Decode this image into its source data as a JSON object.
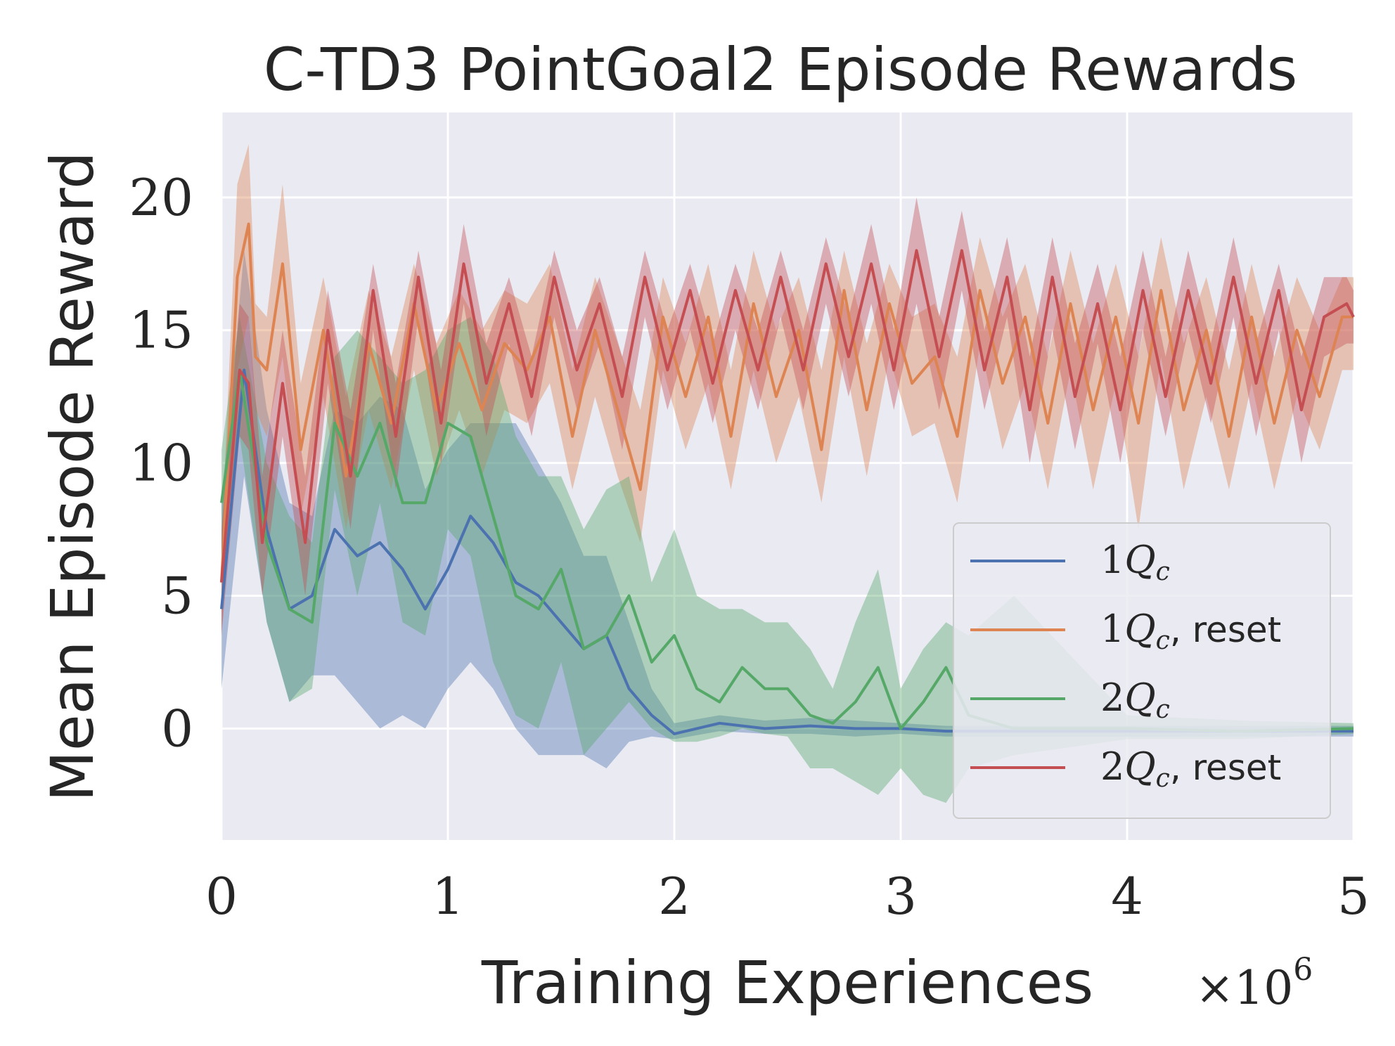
{
  "chart_data": {
    "type": "line",
    "title": "C-TD3 PointGoal2 Episode Rewards",
    "xlabel": "Training Experiences",
    "ylabel": "Mean Episode Reward",
    "x_multiplier": "×10",
    "x_multiplier_exp": "6",
    "xlim": [
      0,
      5
    ],
    "ylim": [
      -4.2,
      23.2
    ],
    "xticks": [
      0,
      1,
      2,
      3,
      4,
      5
    ],
    "xtick_labels": [
      "0",
      "1",
      "2",
      "3",
      "4",
      "5"
    ],
    "yticks": [
      0,
      5,
      10,
      15,
      20
    ],
    "ytick_labels": [
      "0",
      "5",
      "10",
      "15",
      "20"
    ],
    "grid": true,
    "legend_position": "lower-right",
    "series": [
      {
        "name": "1Qc",
        "legend_label": "1Q_c",
        "color": "#4c72b0",
        "x": [
          0,
          0.1,
          0.2,
          0.3,
          0.4,
          0.5,
          0.6,
          0.7,
          0.8,
          0.9,
          1.0,
          1.1,
          1.2,
          1.3,
          1.4,
          1.5,
          1.6,
          1.7,
          1.8,
          1.9,
          2.0,
          2.2,
          2.4,
          2.6,
          2.8,
          3.0,
          3.2,
          3.6,
          4.0,
          4.5,
          5.0
        ],
        "y": [
          4.5,
          13.5,
          7.5,
          4.5,
          5.0,
          7.5,
          6.5,
          7.0,
          6.0,
          4.5,
          6.0,
          8.0,
          7.0,
          5.5,
          5.0,
          4.0,
          3.0,
          3.5,
          1.5,
          0.5,
          -0.2,
          0.2,
          0.0,
          0.1,
          0.0,
          0.0,
          -0.1,
          -0.1,
          -0.1,
          -0.1,
          -0.1
        ],
        "upper": [
          8.5,
          18.0,
          12.0,
          8.5,
          8.0,
          12.0,
          11.5,
          12.5,
          12.0,
          9.0,
          10.5,
          11.5,
          11.5,
          11.5,
          10.0,
          8.5,
          6.5,
          6.5,
          4.0,
          1.5,
          0.2,
          0.5,
          0.3,
          0.4,
          0.3,
          0.2,
          0.1,
          0.1,
          0.1,
          0.1,
          0.1
        ],
        "lower": [
          1.5,
          9.5,
          4.0,
          1.0,
          2.0,
          2.0,
          1.0,
          0.0,
          0.5,
          0.0,
          1.5,
          2.5,
          1.5,
          0.0,
          -1.0,
          -1.0,
          -1.0,
          -1.5,
          -0.5,
          -0.3,
          -0.4,
          -0.1,
          -0.2,
          -0.2,
          -0.3,
          -0.2,
          -0.3,
          -0.3,
          -0.3,
          -0.3,
          -0.3
        ]
      },
      {
        "name": "1Qc, reset",
        "legend_label": "1Q_c, reset",
        "color": "#dd8452",
        "x": [
          0,
          0.07,
          0.12,
          0.15,
          0.2,
          0.27,
          0.35,
          0.45,
          0.55,
          0.65,
          0.75,
          0.85,
          0.95,
          1.05,
          1.15,
          1.25,
          1.35,
          1.45,
          1.55,
          1.65,
          1.75,
          1.85,
          1.95,
          2.05,
          2.15,
          2.25,
          2.35,
          2.45,
          2.55,
          2.65,
          2.75,
          2.85,
          2.95,
          3.05,
          3.15,
          3.25,
          3.35,
          3.45,
          3.55,
          3.65,
          3.75,
          3.85,
          3.95,
          4.05,
          4.15,
          4.25,
          4.35,
          4.45,
          4.55,
          4.65,
          4.75,
          4.85,
          4.95,
          5.0
        ],
        "y": [
          5.5,
          17.0,
          19.0,
          14.0,
          13.5,
          17.5,
          10.5,
          15.0,
          9.5,
          14.5,
          11.5,
          16.0,
          12.0,
          14.5,
          12.0,
          14.5,
          13.5,
          15.5,
          11.0,
          15.0,
          12.0,
          9.0,
          15.5,
          12.5,
          15.5,
          11.0,
          16.0,
          12.5,
          15.0,
          10.5,
          16.5,
          12.0,
          16.0,
          13.0,
          14.0,
          11.0,
          16.5,
          13.0,
          15.5,
          11.5,
          16.0,
          12.0,
          15.5,
          11.5,
          16.5,
          12.0,
          15.0,
          11.0,
          15.5,
          11.5,
          15.0,
          12.5,
          15.5,
          15.5
        ],
        "upper": [
          7.0,
          20.5,
          22.0,
          16.0,
          15.5,
          20.5,
          13.0,
          17.0,
          12.5,
          16.5,
          14.0,
          17.5,
          14.5,
          16.5,
          15.0,
          16.5,
          16.0,
          17.5,
          13.5,
          17.0,
          14.5,
          12.0,
          17.0,
          14.5,
          17.5,
          13.5,
          18.0,
          15.0,
          17.0,
          13.5,
          18.0,
          14.5,
          17.5,
          15.5,
          16.0,
          14.0,
          18.5,
          15.5,
          17.5,
          14.0,
          18.0,
          14.5,
          17.5,
          14.0,
          18.5,
          14.5,
          17.0,
          13.5,
          17.5,
          14.0,
          17.0,
          15.0,
          17.0,
          17.0
        ],
        "lower": [
          3.5,
          13.5,
          15.5,
          12.0,
          11.0,
          14.0,
          8.0,
          12.5,
          7.5,
          12.0,
          9.0,
          13.5,
          9.5,
          12.0,
          9.5,
          12.0,
          11.5,
          13.0,
          9.0,
          12.5,
          9.5,
          7.0,
          13.5,
          10.5,
          13.0,
          9.0,
          13.5,
          10.0,
          12.5,
          8.5,
          14.0,
          9.5,
          14.0,
          11.0,
          11.5,
          8.5,
          14.5,
          10.5,
          13.0,
          9.0,
          13.5,
          9.0,
          13.0,
          7.5,
          14.0,
          9.0,
          12.5,
          9.0,
          13.0,
          9.0,
          12.5,
          10.5,
          13.5,
          13.5
        ]
      },
      {
        "name": "2Qc",
        "legend_label": "2Q_c",
        "color": "#55a868",
        "x": [
          0,
          0.08,
          0.2,
          0.3,
          0.4,
          0.5,
          0.6,
          0.7,
          0.8,
          0.9,
          1.0,
          1.1,
          1.2,
          1.3,
          1.4,
          1.5,
          1.6,
          1.7,
          1.8,
          1.9,
          2.0,
          2.1,
          2.2,
          2.3,
          2.4,
          2.5,
          2.6,
          2.7,
          2.8,
          2.9,
          3.0,
          3.1,
          3.2,
          3.3,
          3.5,
          4.0,
          4.5,
          5.0
        ],
        "y": [
          8.5,
          13.5,
          7.0,
          4.5,
          4.0,
          11.5,
          9.5,
          11.5,
          8.5,
          8.5,
          11.5,
          11.0,
          8.0,
          5.0,
          4.5,
          6.0,
          3.0,
          3.5,
          5.0,
          2.5,
          3.5,
          1.5,
          1.0,
          2.3,
          1.5,
          1.5,
          0.5,
          0.2,
          1.0,
          2.3,
          0.0,
          1.0,
          2.3,
          0.5,
          0.0,
          0.0,
          -0.1,
          0.0
        ],
        "upper": [
          10.5,
          15.5,
          10.0,
          8.0,
          7.0,
          14.0,
          15.0,
          14.0,
          13.0,
          13.5,
          15.0,
          15.5,
          14.0,
          11.0,
          9.5,
          9.5,
          7.5,
          9.0,
          9.5,
          5.5,
          7.5,
          5.0,
          4.5,
          4.5,
          4.0,
          4.0,
          3.0,
          1.5,
          4.0,
          6.0,
          1.5,
          3.0,
          4.0,
          3.5,
          5.0,
          0.5,
          0.3,
          0.2
        ],
        "lower": [
          6.5,
          11.0,
          4.0,
          1.0,
          1.5,
          9.0,
          5.0,
          8.5,
          4.0,
          3.5,
          7.5,
          6.5,
          2.5,
          0.5,
          0.0,
          2.5,
          -1.0,
          0.0,
          1.0,
          0.0,
          -0.5,
          -0.5,
          -0.3,
          0.0,
          -0.2,
          -0.3,
          -1.5,
          -1.5,
          -2.0,
          -2.5,
          -1.5,
          -2.5,
          -2.8,
          -1.5,
          -1.0,
          -0.4,
          -0.4,
          -0.2
        ]
      },
      {
        "name": "2Qc, reset",
        "legend_label": "2Q_c, reset",
        "color": "#c44e52",
        "x": [
          0,
          0.08,
          0.12,
          0.18,
          0.27,
          0.37,
          0.47,
          0.57,
          0.67,
          0.77,
          0.87,
          0.97,
          1.07,
          1.17,
          1.27,
          1.37,
          1.47,
          1.57,
          1.67,
          1.77,
          1.87,
          1.97,
          2.07,
          2.17,
          2.27,
          2.37,
          2.47,
          2.57,
          2.67,
          2.77,
          2.87,
          2.97,
          3.07,
          3.17,
          3.27,
          3.37,
          3.47,
          3.57,
          3.67,
          3.77,
          3.87,
          3.97,
          4.07,
          4.17,
          4.27,
          4.37,
          4.47,
          4.57,
          4.67,
          4.77,
          4.87,
          4.97,
          5.0
        ],
        "y": [
          5.5,
          13.5,
          13.0,
          7.0,
          13.0,
          7.0,
          15.0,
          9.5,
          16.5,
          11.0,
          17.0,
          11.5,
          17.5,
          13.0,
          16.0,
          12.5,
          17.0,
          13.5,
          16.0,
          12.5,
          17.0,
          13.5,
          16.5,
          13.0,
          16.5,
          13.5,
          17.0,
          13.5,
          17.5,
          14.0,
          17.5,
          13.5,
          18.0,
          14.0,
          18.0,
          13.5,
          17.0,
          12.0,
          17.0,
          12.5,
          16.0,
          12.0,
          16.5,
          12.5,
          16.5,
          13.0,
          17.0,
          13.0,
          16.5,
          12.0,
          15.5,
          16.0,
          15.5
        ],
        "upper": [
          7.5,
          16.0,
          15.5,
          9.5,
          15.0,
          9.5,
          16.5,
          12.0,
          17.5,
          13.0,
          18.0,
          13.5,
          19.0,
          14.5,
          17.0,
          14.0,
          18.0,
          15.0,
          17.0,
          14.0,
          18.0,
          15.0,
          17.5,
          14.5,
          17.5,
          15.0,
          18.0,
          15.0,
          18.5,
          15.5,
          19.0,
          15.0,
          20.0,
          15.5,
          19.5,
          15.0,
          18.5,
          14.0,
          18.5,
          14.5,
          17.5,
          14.0,
          18.0,
          14.0,
          18.0,
          14.5,
          18.5,
          14.5,
          17.5,
          14.0,
          17.0,
          17.0,
          16.5
        ],
        "lower": [
          3.5,
          11.0,
          10.5,
          5.0,
          11.0,
          5.0,
          13.0,
          7.5,
          15.0,
          9.0,
          15.5,
          10.0,
          16.0,
          11.0,
          14.5,
          11.0,
          15.5,
          12.0,
          14.5,
          10.5,
          15.5,
          12.0,
          15.0,
          11.5,
          15.0,
          12.0,
          15.5,
          12.0,
          16.0,
          12.5,
          16.0,
          12.0,
          16.0,
          12.0,
          16.5,
          12.0,
          15.5,
          10.0,
          15.0,
          10.5,
          14.5,
          10.0,
          15.0,
          11.0,
          15.0,
          11.5,
          15.5,
          11.0,
          15.0,
          10.0,
          14.0,
          14.5,
          14.5
        ]
      }
    ]
  }
}
